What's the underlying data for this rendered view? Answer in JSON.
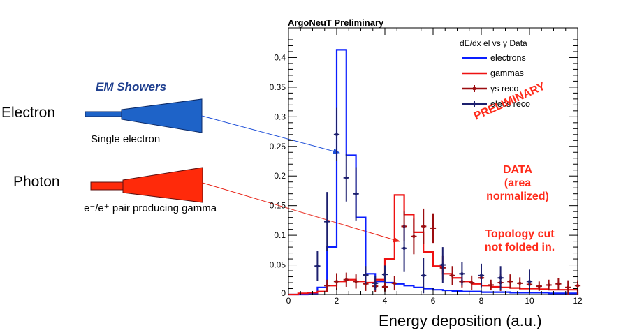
{
  "left_panel": {
    "em_title": "EM Showers",
    "electron_label": "Electron",
    "photon_label": "Photon",
    "single_electron_caption": "Single electron",
    "pair_caption": "e⁻/e⁺ pair producing gamma",
    "colors": {
      "electron_shower": "#1e63c8",
      "photon_shower": "#ff2a0a"
    }
  },
  "annotations": {
    "preliminary": "PRELIMINARY",
    "data_lines": [
      "DATA",
      "(area",
      "normalized)"
    ],
    "topology_lines": [
      "Topology cut",
      "not folded in."
    ]
  },
  "chart_data": {
    "type": "line",
    "title": "ArgoNeuT Preliminary",
    "legend_title": "dE/dx  el vs γ Data",
    "xlabel": "Energy deposition (a.u.)",
    "ylabel": "",
    "xlim": [
      0,
      12
    ],
    "ylim": [
      0,
      0.45
    ],
    "x_ticks": [
      0,
      2,
      4,
      6,
      8,
      10,
      12
    ],
    "y_ticks": [
      0.05,
      0.1,
      0.15,
      0.2,
      0.25,
      0.3,
      0.35,
      0.4
    ],
    "legend_position": "top-right",
    "bin_width": 0.4,
    "histograms": [
      {
        "name": "electrons",
        "color": "#0a1eff",
        "bin_edges": [
          0,
          0.4,
          0.8,
          1.2,
          1.6,
          2.0,
          2.4,
          2.8,
          3.2,
          3.6,
          4.0,
          4.4,
          4.8,
          5.2,
          5.6,
          6.0,
          6.4,
          6.8,
          7.2,
          7.6,
          8.0,
          8.4,
          8.8,
          9.2,
          9.6,
          10.0,
          10.4,
          10.8,
          11.2,
          11.6,
          12.0
        ],
        "values": [
          0,
          0,
          0.002,
          0.012,
          0.08,
          0.413,
          0.235,
          0.13,
          0.035,
          0.022,
          0.02,
          0.018,
          0.015,
          0.012,
          0.01,
          0.008,
          0.007,
          0.006,
          0.005,
          0.005,
          0.004,
          0.004,
          0.004,
          0.003,
          0.003,
          0.003,
          0.003,
          0.002,
          0.002,
          0.002
        ]
      },
      {
        "name": "gammas",
        "color": "#ee1111",
        "bin_edges": [
          0,
          0.4,
          0.8,
          1.2,
          1.6,
          2.0,
          2.4,
          2.8,
          3.2,
          3.6,
          4.0,
          4.4,
          4.8,
          5.2,
          5.6,
          6.0,
          6.4,
          6.8,
          7.2,
          7.6,
          8.0,
          8.4,
          8.8,
          9.2,
          9.6,
          10.0,
          10.4,
          10.8,
          11.2,
          11.6,
          12.0
        ],
        "values": [
          0,
          0.002,
          0.003,
          0.005,
          0.015,
          0.022,
          0.025,
          0.022,
          0.02,
          0.025,
          0.06,
          0.168,
          0.135,
          0.105,
          0.072,
          0.048,
          0.035,
          0.028,
          0.022,
          0.018,
          0.015,
          0.013,
          0.012,
          0.011,
          0.01,
          0.01,
          0.009,
          0.008,
          0.008,
          0.008
        ]
      }
    ],
    "points": [
      {
        "name": "γs reco",
        "color": "#9b0d10",
        "x": [
          1.6,
          2.0,
          2.4,
          2.8,
          3.2,
          3.6,
          4.0,
          4.4,
          4.8,
          5.2,
          5.6,
          6.0,
          6.4,
          6.8,
          7.2,
          7.6,
          8.0,
          8.4,
          8.8,
          9.2,
          9.6,
          10.0,
          10.4,
          10.8,
          11.2,
          11.6,
          12.0
        ],
        "y": [
          0.015,
          0.022,
          0.025,
          0.022,
          0.018,
          0.014,
          0.013,
          0.019,
          0.115,
          0.098,
          0.115,
          0.112,
          0.045,
          0.032,
          0.022,
          0.02,
          0.028,
          0.016,
          0.02,
          0.022,
          0.019,
          0.017,
          0.014,
          0.016,
          0.018,
          0.012,
          0.015
        ],
        "err": [
          0.01,
          0.014,
          0.012,
          0.012,
          0.012,
          0.01,
          0.008,
          0.012,
          0.025,
          0.03,
          0.03,
          0.025,
          0.02,
          0.016,
          0.01,
          0.012,
          0.012,
          0.009,
          0.014,
          0.012,
          0.01,
          0.01,
          0.008,
          0.009,
          0.01,
          0.012,
          0.009
        ]
      },
      {
        "name": "elecs reco",
        "color": "#1c1f6e",
        "x": [
          1.2,
          1.6,
          2.0,
          2.4,
          2.8,
          3.2,
          3.6,
          4.0,
          4.8,
          5.6,
          6.4,
          7.2,
          8.0,
          8.8,
          10.0
        ],
        "y": [
          0.048,
          0.123,
          0.27,
          0.197,
          0.17,
          0.033,
          0.019,
          0.034,
          0.078,
          0.032,
          0.05,
          0.035,
          0.032,
          0.028,
          0.022
        ],
        "err": [
          0.025,
          0.05,
          0.045,
          0.04,
          0.045,
          0.015,
          0.012,
          0.015,
          0.04,
          0.03,
          0.03,
          0.02,
          0.02,
          0.02,
          0.02
        ]
      }
    ]
  }
}
